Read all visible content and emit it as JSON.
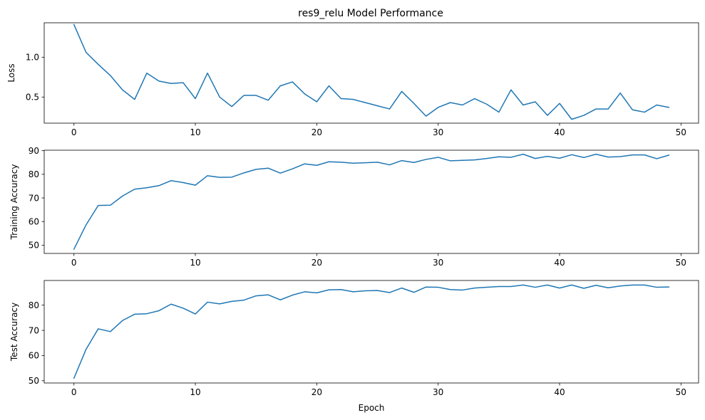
{
  "chart_data": [
    {
      "type": "line",
      "title": "res9_relu Model Performance",
      "xlabel": "",
      "ylabel": "Loss",
      "xlim": [
        -2.45,
        51.45
      ],
      "ylim": [
        0.172,
        1.432
      ],
      "xticks": [
        0,
        10,
        20,
        30,
        40,
        50
      ],
      "yticks": [
        0.5,
        1.0
      ],
      "ytick_labels": [
        "0.5",
        "1.0"
      ],
      "grid": false,
      "color": "#1f77b4",
      "x": [
        0,
        1,
        2,
        3,
        4,
        5,
        6,
        7,
        8,
        9,
        10,
        11,
        12,
        13,
        14,
        15,
        16,
        17,
        18,
        19,
        20,
        21,
        22,
        23,
        24,
        25,
        26,
        27,
        28,
        29,
        30,
        31,
        32,
        33,
        34,
        35,
        36,
        37,
        38,
        39,
        40,
        41,
        42,
        43,
        44,
        45,
        46,
        47,
        48,
        49
      ],
      "series": [
        {
          "values": [
            1.41,
            1.06,
            0.91,
            0.77,
            0.59,
            0.47,
            0.8,
            0.7,
            0.67,
            0.68,
            0.48,
            0.8,
            0.5,
            0.38,
            0.52,
            0.52,
            0.46,
            0.64,
            0.69,
            0.54,
            0.44,
            0.64,
            0.48,
            0.47,
            0.43,
            0.39,
            0.35,
            0.57,
            0.42,
            0.26,
            0.37,
            0.43,
            0.4,
            0.48,
            0.41,
            0.31,
            0.59,
            0.4,
            0.44,
            0.27,
            0.42,
            0.22,
            0.27,
            0.35,
            0.35,
            0.55,
            0.34,
            0.31,
            0.4,
            0.37
          ]
        }
      ]
    },
    {
      "type": "line",
      "title": "",
      "xlabel": "",
      "ylabel": "Training Accuracy",
      "xlim": [
        -2.45,
        51.45
      ],
      "ylim": [
        46.5,
        90.2
      ],
      "xticks": [
        0,
        10,
        20,
        30,
        40,
        50
      ],
      "yticks": [
        50,
        60,
        70,
        80,
        90
      ],
      "ytick_labels": [
        "50",
        "60",
        "70",
        "80",
        "90"
      ],
      "grid": false,
      "color": "#1f77b4",
      "x": [
        0,
        1,
        2,
        3,
        4,
        5,
        6,
        7,
        8,
        9,
        10,
        11,
        12,
        13,
        14,
        15,
        16,
        17,
        18,
        19,
        20,
        21,
        22,
        23,
        24,
        25,
        26,
        27,
        28,
        29,
        30,
        31,
        32,
        33,
        34,
        35,
        36,
        37,
        38,
        39,
        40,
        41,
        42,
        43,
        44,
        45,
        46,
        47,
        48,
        49
      ],
      "series": [
        {
          "values": [
            48.3,
            58.6,
            66.8,
            66.9,
            70.8,
            73.7,
            74.3,
            75.2,
            77.3,
            76.5,
            75.4,
            79.4,
            78.7,
            78.8,
            80.6,
            82.1,
            82.6,
            80.5,
            82.3,
            84.4,
            83.8,
            85.3,
            85.1,
            84.7,
            84.9,
            85.1,
            84.0,
            85.8,
            85.0,
            86.3,
            87.2,
            85.7,
            85.9,
            86.1,
            86.7,
            87.4,
            87.2,
            88.5,
            86.7,
            87.6,
            86.8,
            88.3,
            87.1,
            88.5,
            87.3,
            87.5,
            88.2,
            88.2,
            86.6,
            88.1
          ]
        }
      ]
    },
    {
      "type": "line",
      "title": "",
      "xlabel": "Epoch",
      "ylabel": "Test Accuracy",
      "xlim": [
        -2.45,
        51.45
      ],
      "ylim": [
        49.1,
        89.8
      ],
      "xticks": [
        0,
        10,
        20,
        30,
        40,
        50
      ],
      "yticks": [
        50,
        60,
        70,
        80
      ],
      "ytick_labels": [
        "50",
        "60",
        "70",
        "80"
      ],
      "grid": false,
      "color": "#1f77b4",
      "x": [
        0,
        1,
        2,
        3,
        4,
        5,
        6,
        7,
        8,
        9,
        10,
        11,
        12,
        13,
        14,
        15,
        16,
        17,
        18,
        19,
        20,
        21,
        22,
        23,
        24,
        25,
        26,
        27,
        28,
        29,
        30,
        31,
        32,
        33,
        34,
        35,
        36,
        37,
        38,
        39,
        40,
        41,
        42,
        43,
        44,
        45,
        46,
        47,
        48,
        49
      ],
      "series": [
        {
          "values": [
            51.0,
            62.5,
            70.6,
            69.5,
            73.9,
            76.4,
            76.6,
            77.8,
            80.4,
            78.8,
            76.5,
            81.2,
            80.5,
            81.5,
            82.0,
            83.7,
            84.1,
            82.1,
            84.0,
            85.3,
            84.9,
            86.1,
            86.2,
            85.3,
            85.7,
            85.8,
            85.0,
            86.8,
            85.1,
            87.2,
            87.1,
            86.2,
            86.0,
            86.8,
            87.1,
            87.4,
            87.4,
            88.0,
            87.1,
            88.0,
            86.8,
            88.0,
            86.7,
            87.9,
            86.9,
            87.6,
            88.0,
            88.0,
            87.1,
            87.2
          ]
        }
      ]
    }
  ]
}
